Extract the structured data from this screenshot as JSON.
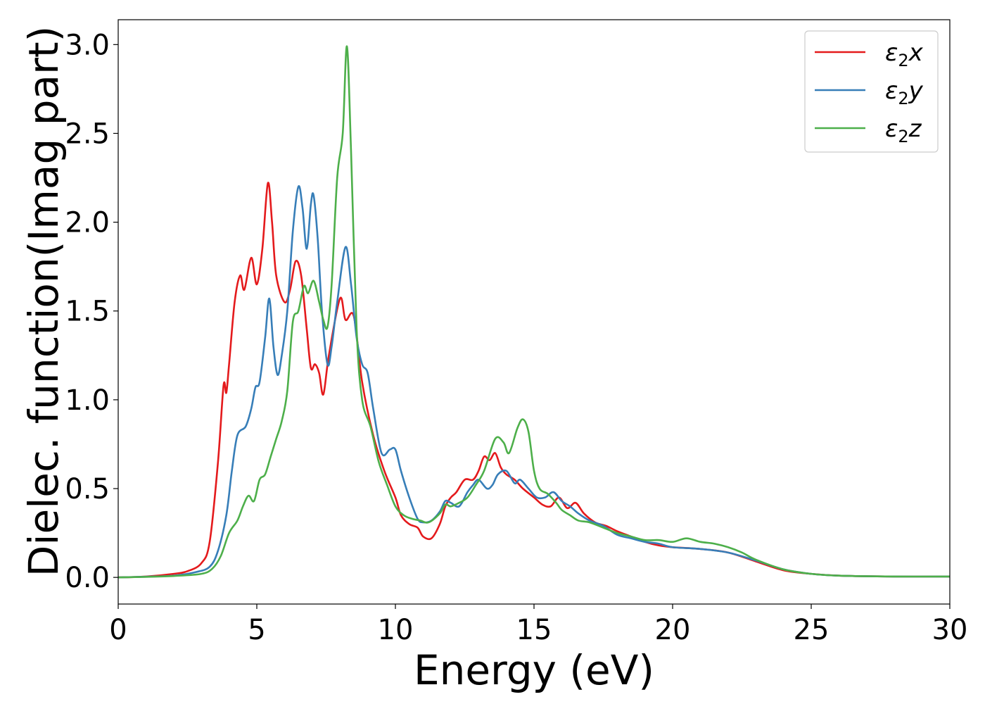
{
  "chart_data": {
    "type": "line",
    "title": "",
    "xlabel": "Energy (eV)",
    "ylabel": "Dielec. function(Imag part)",
    "xlim": [
      0,
      30
    ],
    "ylim": [
      -0.15,
      3.14
    ],
    "xticks": [
      0,
      5,
      10,
      15,
      20,
      25,
      30
    ],
    "yticks": [
      0.0,
      0.5,
      1.0,
      1.5,
      2.0,
      2.5,
      3.0
    ],
    "xtick_labels": [
      "0",
      "5",
      "10",
      "15",
      "20",
      "25",
      "30"
    ],
    "ytick_labels": [
      "0.0",
      "0.5",
      "1.0",
      "1.5",
      "2.0",
      "2.5",
      "3.0"
    ],
    "grid": false,
    "legend_position": "top-right",
    "series": [
      {
        "name": "ε₂x",
        "label_base": "ε",
        "label_sub": "2",
        "label_suffix": "x",
        "color": "#e41a1c",
        "points": [
          [
            0,
            0
          ],
          [
            1,
            0.005
          ],
          [
            2,
            0.02
          ],
          [
            2.5,
            0.035
          ],
          [
            3,
            0.08
          ],
          [
            3.3,
            0.2
          ],
          [
            3.6,
            0.65
          ],
          [
            3.8,
            1.08
          ],
          [
            3.9,
            1.04
          ],
          [
            4.0,
            1.2
          ],
          [
            4.2,
            1.55
          ],
          [
            4.4,
            1.7
          ],
          [
            4.55,
            1.62
          ],
          [
            4.8,
            1.8
          ],
          [
            5.0,
            1.65
          ],
          [
            5.2,
            1.85
          ],
          [
            5.4,
            2.22
          ],
          [
            5.55,
            2.0
          ],
          [
            5.7,
            1.7
          ],
          [
            6.0,
            1.55
          ],
          [
            6.2,
            1.62
          ],
          [
            6.4,
            1.78
          ],
          [
            6.6,
            1.7
          ],
          [
            6.8,
            1.4
          ],
          [
            6.95,
            1.18
          ],
          [
            7.1,
            1.2
          ],
          [
            7.25,
            1.15
          ],
          [
            7.4,
            1.03
          ],
          [
            7.6,
            1.25
          ],
          [
            8.0,
            1.57
          ],
          [
            8.2,
            1.45
          ],
          [
            8.5,
            1.47
          ],
          [
            8.8,
            1.1
          ],
          [
            9.2,
            0.8
          ],
          [
            9.6,
            0.6
          ],
          [
            10.0,
            0.45
          ],
          [
            10.2,
            0.35
          ],
          [
            10.5,
            0.3
          ],
          [
            10.8,
            0.28
          ],
          [
            11.0,
            0.23
          ],
          [
            11.3,
            0.22
          ],
          [
            11.6,
            0.3
          ],
          [
            11.8,
            0.4
          ],
          [
            12.0,
            0.45
          ],
          [
            12.2,
            0.48
          ],
          [
            12.5,
            0.55
          ],
          [
            12.8,
            0.55
          ],
          [
            13.0,
            0.6
          ],
          [
            13.2,
            0.68
          ],
          [
            13.4,
            0.66
          ],
          [
            13.6,
            0.7
          ],
          [
            13.8,
            0.62
          ],
          [
            14.0,
            0.58
          ],
          [
            14.3,
            0.55
          ],
          [
            14.6,
            0.5
          ],
          [
            15.0,
            0.45
          ],
          [
            15.3,
            0.41
          ],
          [
            15.6,
            0.4
          ],
          [
            15.9,
            0.45
          ],
          [
            16.2,
            0.39
          ],
          [
            16.5,
            0.42
          ],
          [
            16.8,
            0.36
          ],
          [
            17.2,
            0.31
          ],
          [
            17.6,
            0.29
          ],
          [
            18.0,
            0.26
          ],
          [
            18.5,
            0.23
          ],
          [
            19.0,
            0.2
          ],
          [
            19.5,
            0.18
          ],
          [
            20.0,
            0.17
          ],
          [
            21.0,
            0.16
          ],
          [
            22.0,
            0.14
          ],
          [
            23.0,
            0.09
          ],
          [
            24.0,
            0.04
          ],
          [
            25.0,
            0.02
          ],
          [
            26.0,
            0.01
          ],
          [
            28.0,
            0.005
          ],
          [
            30,
            0.005
          ]
        ]
      },
      {
        "name": "ε₂y",
        "label_base": "ε",
        "label_sub": "2",
        "label_suffix": "y",
        "color": "#377eb8",
        "points": [
          [
            0,
            0
          ],
          [
            1,
            0.004
          ],
          [
            2,
            0.01
          ],
          [
            2.8,
            0.03
          ],
          [
            3.3,
            0.06
          ],
          [
            3.6,
            0.15
          ],
          [
            3.9,
            0.35
          ],
          [
            4.1,
            0.6
          ],
          [
            4.3,
            0.8
          ],
          [
            4.6,
            0.85
          ],
          [
            4.8,
            0.95
          ],
          [
            4.95,
            1.07
          ],
          [
            5.1,
            1.1
          ],
          [
            5.3,
            1.35
          ],
          [
            5.45,
            1.57
          ],
          [
            5.6,
            1.3
          ],
          [
            5.75,
            1.14
          ],
          [
            5.9,
            1.25
          ],
          [
            6.1,
            1.5
          ],
          [
            6.3,
            1.95
          ],
          [
            6.5,
            2.2
          ],
          [
            6.65,
            2.08
          ],
          [
            6.8,
            1.85
          ],
          [
            6.95,
            2.1
          ],
          [
            7.05,
            2.15
          ],
          [
            7.2,
            1.9
          ],
          [
            7.35,
            1.5
          ],
          [
            7.55,
            1.2
          ],
          [
            7.7,
            1.3
          ],
          [
            7.9,
            1.55
          ],
          [
            8.2,
            1.86
          ],
          [
            8.4,
            1.65
          ],
          [
            8.6,
            1.35
          ],
          [
            8.8,
            1.2
          ],
          [
            9.0,
            1.15
          ],
          [
            9.2,
            0.95
          ],
          [
            9.5,
            0.7
          ],
          [
            9.8,
            0.72
          ],
          [
            10.0,
            0.72
          ],
          [
            10.2,
            0.6
          ],
          [
            10.5,
            0.45
          ],
          [
            10.8,
            0.33
          ],
          [
            11.0,
            0.31
          ],
          [
            11.3,
            0.32
          ],
          [
            11.6,
            0.37
          ],
          [
            11.8,
            0.43
          ],
          [
            12.0,
            0.42
          ],
          [
            12.3,
            0.4
          ],
          [
            12.6,
            0.48
          ],
          [
            12.8,
            0.52
          ],
          [
            13.0,
            0.55
          ],
          [
            13.3,
            0.5
          ],
          [
            13.5,
            0.52
          ],
          [
            13.7,
            0.58
          ],
          [
            14.0,
            0.6
          ],
          [
            14.3,
            0.53
          ],
          [
            14.5,
            0.55
          ],
          [
            14.8,
            0.5
          ],
          [
            15.1,
            0.45
          ],
          [
            15.4,
            0.45
          ],
          [
            15.7,
            0.48
          ],
          [
            16.0,
            0.43
          ],
          [
            16.3,
            0.4
          ],
          [
            16.6,
            0.36
          ],
          [
            17.0,
            0.32
          ],
          [
            17.5,
            0.29
          ],
          [
            18.0,
            0.24
          ],
          [
            18.5,
            0.22
          ],
          [
            19.0,
            0.2
          ],
          [
            19.5,
            0.19
          ],
          [
            20.0,
            0.17
          ],
          [
            21.0,
            0.16
          ],
          [
            22.0,
            0.14
          ],
          [
            23.0,
            0.095
          ],
          [
            24.0,
            0.045
          ],
          [
            25.0,
            0.02
          ],
          [
            26.0,
            0.01
          ],
          [
            28.0,
            0.005
          ],
          [
            30,
            0.005
          ]
        ]
      },
      {
        "name": "ε₂z",
        "label_base": "ε",
        "label_sub": "2",
        "label_suffix": "z",
        "color": "#4daf4a",
        "points": [
          [
            0,
            0
          ],
          [
            1,
            0.003
          ],
          [
            2,
            0.008
          ],
          [
            3,
            0.02
          ],
          [
            3.4,
            0.05
          ],
          [
            3.7,
            0.12
          ],
          [
            4.0,
            0.25
          ],
          [
            4.3,
            0.32
          ],
          [
            4.5,
            0.4
          ],
          [
            4.7,
            0.46
          ],
          [
            4.9,
            0.43
          ],
          [
            5.1,
            0.55
          ],
          [
            5.3,
            0.58
          ],
          [
            5.5,
            0.68
          ],
          [
            5.7,
            0.78
          ],
          [
            5.9,
            0.88
          ],
          [
            6.1,
            1.05
          ],
          [
            6.3,
            1.44
          ],
          [
            6.5,
            1.5
          ],
          [
            6.7,
            1.64
          ],
          [
            6.85,
            1.6
          ],
          [
            7.05,
            1.67
          ],
          [
            7.25,
            1.55
          ],
          [
            7.4,
            1.45
          ],
          [
            7.55,
            1.41
          ],
          [
            7.7,
            1.65
          ],
          [
            7.9,
            2.25
          ],
          [
            8.1,
            2.5
          ],
          [
            8.25,
            2.99
          ],
          [
            8.4,
            2.4
          ],
          [
            8.6,
            1.4
          ],
          [
            8.8,
            1.0
          ],
          [
            9.1,
            0.85
          ],
          [
            9.4,
            0.65
          ],
          [
            9.7,
            0.52
          ],
          [
            10.0,
            0.4
          ],
          [
            10.3,
            0.35
          ],
          [
            10.6,
            0.33
          ],
          [
            10.9,
            0.32
          ],
          [
            11.2,
            0.31
          ],
          [
            11.6,
            0.36
          ],
          [
            11.8,
            0.41
          ],
          [
            12.0,
            0.4
          ],
          [
            12.3,
            0.42
          ],
          [
            12.6,
            0.45
          ],
          [
            12.9,
            0.52
          ],
          [
            13.2,
            0.6
          ],
          [
            13.6,
            0.78
          ],
          [
            13.9,
            0.76
          ],
          [
            14.1,
            0.7
          ],
          [
            14.4,
            0.84
          ],
          [
            14.6,
            0.89
          ],
          [
            14.8,
            0.82
          ],
          [
            15.0,
            0.6
          ],
          [
            15.2,
            0.5
          ],
          [
            15.5,
            0.47
          ],
          [
            15.8,
            0.42
          ],
          [
            16.0,
            0.38
          ],
          [
            16.3,
            0.35
          ],
          [
            16.6,
            0.32
          ],
          [
            17.0,
            0.31
          ],
          [
            17.5,
            0.28
          ],
          [
            18.0,
            0.25
          ],
          [
            18.5,
            0.23
          ],
          [
            19.0,
            0.21
          ],
          [
            19.5,
            0.21
          ],
          [
            20.0,
            0.2
          ],
          [
            20.5,
            0.22
          ],
          [
            21.0,
            0.2
          ],
          [
            21.5,
            0.19
          ],
          [
            22.0,
            0.17
          ],
          [
            22.5,
            0.14
          ],
          [
            23.0,
            0.1
          ],
          [
            24.0,
            0.045
          ],
          [
            25.0,
            0.02
          ],
          [
            26.0,
            0.01
          ],
          [
            28.0,
            0.005
          ],
          [
            30,
            0.005
          ]
        ]
      }
    ]
  }
}
